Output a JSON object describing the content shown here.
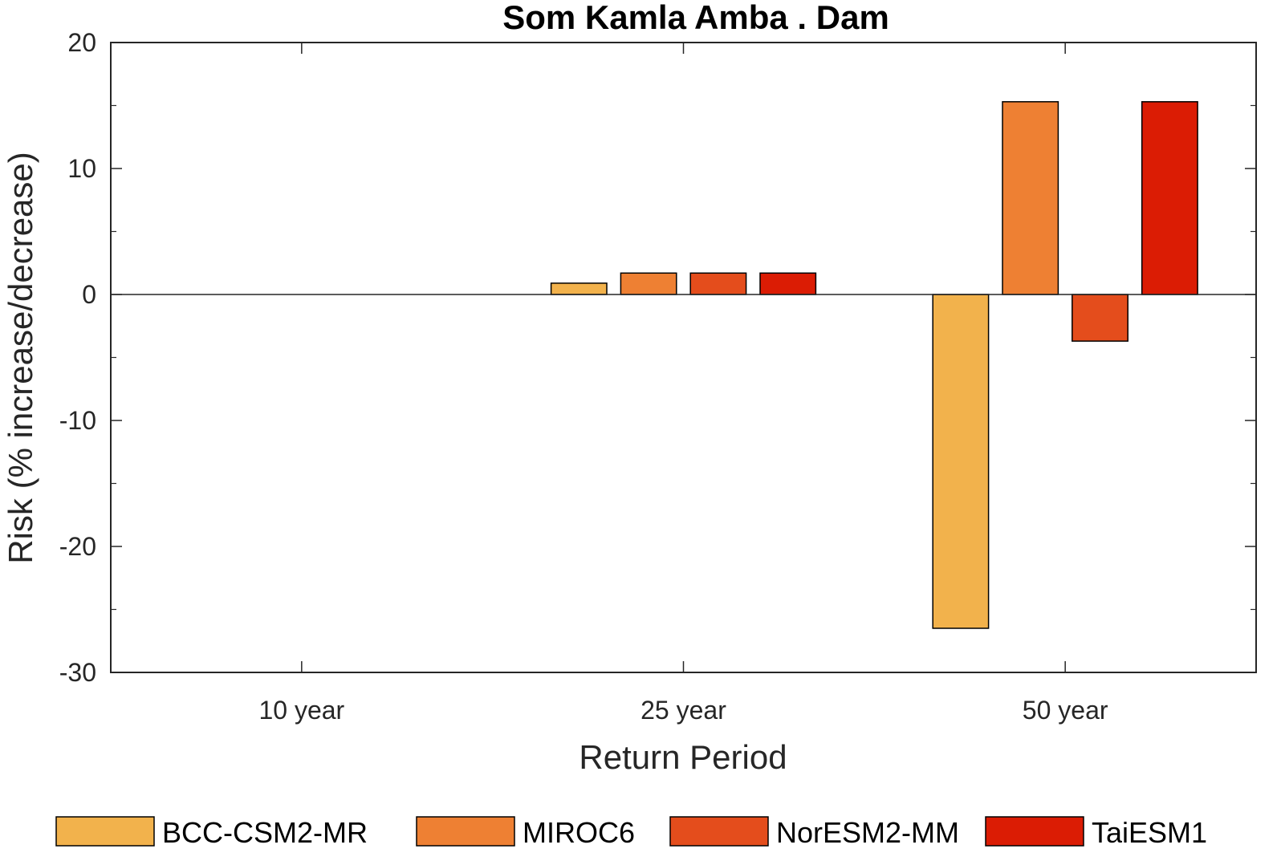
{
  "chart_data": {
    "type": "bar",
    "title": "Som Kamla Amba . Dam",
    "xlabel": "Return Period",
    "ylabel": "Risk (% increase/decrease)",
    "categories": [
      "10 year",
      "25 year",
      "50 year"
    ],
    "ylim": [
      -30,
      20
    ],
    "yticks": [
      -30,
      -20,
      -10,
      0,
      10,
      20
    ],
    "grid": false,
    "legend_position": "bottom",
    "series": [
      {
        "name": "BCC-CSM2-MR",
        "color": "#F2B24C",
        "values": [
          0,
          0.9,
          -26.5
        ]
      },
      {
        "name": "MIROC6",
        "color": "#EE8033",
        "values": [
          0,
          1.7,
          15.3
        ]
      },
      {
        "name": "NorESM2-MM",
        "color": "#E44D1C",
        "values": [
          0,
          1.7,
          -3.7
        ]
      },
      {
        "name": "TaiESM1",
        "color": "#DB1C04",
        "values": [
          0,
          1.7,
          15.3
        ]
      }
    ]
  }
}
